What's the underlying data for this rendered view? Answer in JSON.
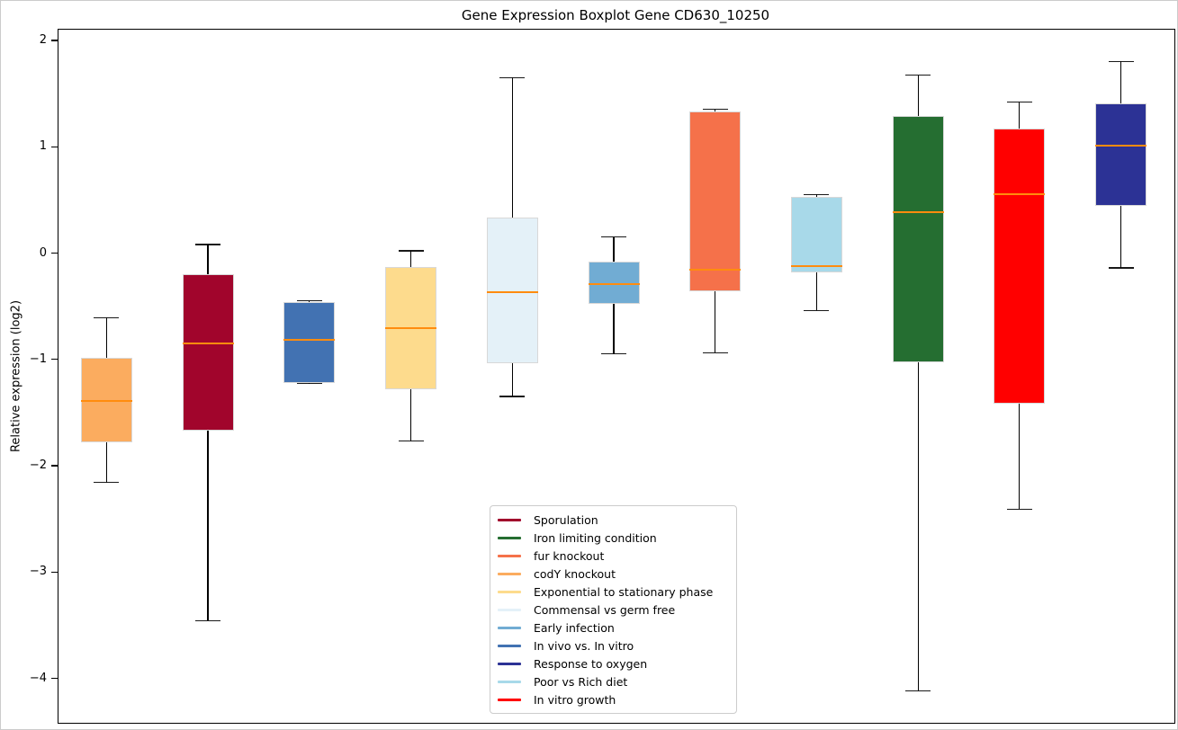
{
  "title": "Gene Expression Boxplot Gene CD630_10250",
  "ylabel": "Relative expression (log2)",
  "colors": {
    "median": "#FF8C0E",
    "whisker": "#000000",
    "box_edge": "#D8D8D8",
    "spine": "#000000",
    "legend_border": "#CCCCCC",
    "background": "#FFFFFF"
  },
  "chart_data": {
    "type": "boxplot",
    "title": "Gene Expression Boxplot Gene CD630_10250",
    "xlabel": "",
    "ylabel": "Relative expression (log2)",
    "ylim": [
      -4.41,
      2.11
    ],
    "yticks": [
      2,
      1,
      0,
      -1,
      -2,
      -3,
      -4
    ],
    "grid": false,
    "legend_position": "bottom-center-inside",
    "series": [
      {
        "name": "codY knockout",
        "color": "#FBAC5F",
        "whisker_low": -2.15,
        "q1": -1.77,
        "median": -1.38,
        "q3": -0.98,
        "whisker_high": -0.6
      },
      {
        "name": "Sporulation",
        "color": "#A1052C",
        "whisker_low": -3.45,
        "q1": -1.66,
        "median": -0.84,
        "q3": -0.19,
        "whisker_high": 0.09
      },
      {
        "name": "In vivo vs. In vitro",
        "color": "#4272B2",
        "whisker_low": -1.22,
        "q1": -1.21,
        "median": -0.81,
        "q3": -0.45,
        "whisker_high": -0.44
      },
      {
        "name": "Exponential to stationary phase",
        "color": "#FDDB8D",
        "whisker_low": -1.76,
        "q1": -1.27,
        "median": -0.7,
        "q3": -0.12,
        "whisker_high": 0.03
      },
      {
        "name": "Commensal vs germ free",
        "color": "#E4F1F8",
        "whisker_low": -1.34,
        "q1": -1.03,
        "median": -0.36,
        "q3": 0.34,
        "whisker_high": 1.66
      },
      {
        "name": "Early infection",
        "color": "#71ACD3",
        "whisker_low": -0.94,
        "q1": -0.47,
        "median": -0.28,
        "q3": -0.07,
        "whisker_high": 0.16
      },
      {
        "name": "fur knockout",
        "color": "#F5714A",
        "whisker_low": -0.93,
        "q1": -0.35,
        "median": -0.15,
        "q3": 1.34,
        "whisker_high": 1.36
      },
      {
        "name": "Poor vs Rich diet",
        "color": "#A8D9E9",
        "whisker_low": -0.53,
        "q1": -0.17,
        "median": -0.11,
        "q3": 0.54,
        "whisker_high": 0.56
      },
      {
        "name": "Iron limiting condition",
        "color": "#256E31",
        "whisker_low": -4.11,
        "q1": -1.02,
        "median": 0.39,
        "q3": 1.3,
        "whisker_high": 1.68
      },
      {
        "name": "In vitro growth",
        "color": "#FF0000",
        "whisker_low": -2.4,
        "q1": -1.41,
        "median": 0.56,
        "q3": 1.18,
        "whisker_high": 1.43
      },
      {
        "name": "Response to oxygen",
        "color": "#2C3295",
        "whisker_low": -0.13,
        "q1": 0.45,
        "median": 1.02,
        "q3": 1.42,
        "whisker_high": 1.81
      }
    ],
    "legend": [
      {
        "label": "Sporulation",
        "color": "#A1052C"
      },
      {
        "label": "Iron limiting condition",
        "color": "#256E31"
      },
      {
        "label": "fur knockout",
        "color": "#F5714A"
      },
      {
        "label": "codY knockout",
        "color": "#FBAC5F"
      },
      {
        "label": "Exponential to stationary phase",
        "color": "#FDDB8D"
      },
      {
        "label": "Commensal vs germ free",
        "color": "#E4F1F8"
      },
      {
        "label": "Early infection",
        "color": "#71ACD3"
      },
      {
        "label": "In vivo vs. In vitro",
        "color": "#4272B2"
      },
      {
        "label": "Response to oxygen",
        "color": "#2C3295"
      },
      {
        "label": "Poor vs Rich diet",
        "color": "#A8D9E9"
      },
      {
        "label": "In vitro growth",
        "color": "#FF0000"
      }
    ]
  }
}
